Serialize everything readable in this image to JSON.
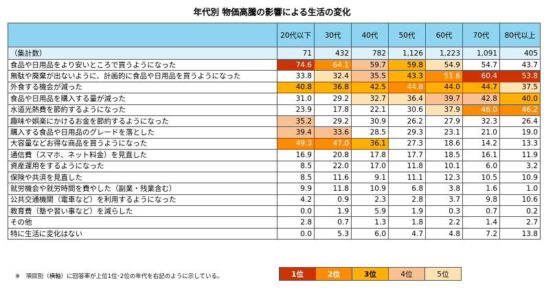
{
  "title": "年代別 物価高騰の影響による生活の変化",
  "colors": {
    "rank1": "#cc3300",
    "rank2": "#ff8c00",
    "rank3": "#ffb000",
    "rank4": "#fac090",
    "rank5": "#fde3b3",
    "header": "#8ed3ef"
  },
  "columns": [
    "20代以下",
    "30代",
    "40代",
    "50代",
    "60代",
    "70代",
    "80代以上"
  ],
  "count_row": {
    "label": "（集計数）",
    "values": [
      "71",
      "432",
      "782",
      "1,126",
      "1,223",
      "1,091",
      "405"
    ]
  },
  "rows": [
    {
      "label": "食品や日用品をより安いところで買うようになった",
      "values": [
        "74.6",
        "64.1",
        "59.7",
        "59.8",
        "54.9",
        "54.7",
        "43.7"
      ],
      "ranks": [
        1,
        2,
        4,
        3,
        5,
        0,
        0
      ]
    },
    {
      "label": "無駄や廃棄が出ないように、計画的に食品や日用品を買うようになった",
      "values": [
        "33.8",
        "32.4",
        "35.5",
        "43.3",
        "51.6",
        "60.4",
        "53.8"
      ],
      "ranks": [
        0,
        5,
        4,
        3,
        2,
        1,
        1
      ]
    },
    {
      "label": "外食する機会が減った",
      "values": [
        "40.8",
        "36.8",
        "42.5",
        "44.8",
        "44.0",
        "44.7",
        "37.5"
      ],
      "ranks": [
        3,
        3,
        3,
        2,
        3,
        3,
        5
      ]
    },
    {
      "label": "食品や日用品を購入する量が減った",
      "values": [
        "31.0",
        "29.2",
        "32.7",
        "36.4",
        "39.7",
        "42.8",
        "40.0"
      ],
      "ranks": [
        0,
        0,
        5,
        5,
        4,
        4,
        3
      ]
    },
    {
      "label": "水道光熱費を節約するようになった",
      "values": [
        "23.9",
        "17.8",
        "22.1",
        "30.6",
        "37.9",
        "46.0",
        "46.2"
      ],
      "ranks": [
        0,
        0,
        0,
        0,
        5,
        2,
        2
      ]
    },
    {
      "label": "趣味や娯楽にかけるお金を節約するようになった",
      "values": [
        "35.2",
        "29.2",
        "30.9",
        "26.2",
        "27.9",
        "32.3",
        "26.4"
      ],
      "ranks": [
        4,
        0,
        0,
        0,
        0,
        0,
        0
      ]
    },
    {
      "label": "購入する食品や日用品のグレードを落とした",
      "values": [
        "39.4",
        "33.6",
        "28.5",
        "29.3",
        "23.1",
        "21.0",
        "19.0"
      ],
      "ranks": [
        4,
        4,
        0,
        0,
        0,
        0,
        0
      ]
    },
    {
      "label": "大容量などお得な商品を買うようになった",
      "values": [
        "49.3",
        "47.0",
        "36.1",
        "27.3",
        "18.6",
        "14.2",
        "13.3"
      ],
      "ranks": [
        2,
        2,
        3,
        0,
        0,
        0,
        0
      ]
    },
    {
      "label": "通信費（スマホ、ネット料金）を見直した",
      "values": [
        "16.9",
        "20.8",
        "17.8",
        "17.7",
        "18.5",
        "16.1",
        "11.9"
      ],
      "ranks": [
        0,
        0,
        0,
        0,
        0,
        0,
        0
      ]
    },
    {
      "label": "資産運用をするようになった",
      "values": [
        "8.5",
        "22.0",
        "17.0",
        "11.8",
        "10.1",
        "6.0",
        "3.2"
      ],
      "ranks": [
        0,
        0,
        0,
        0,
        0,
        0,
        0
      ]
    },
    {
      "label": "保険や共済を見直した",
      "values": [
        "8.5",
        "11.6",
        "9.1",
        "11.1",
        "12.3",
        "10.5",
        "10.9"
      ],
      "ranks": [
        0,
        0,
        0,
        0,
        0,
        0,
        0
      ]
    },
    {
      "label": "就労機会や就労時間を費やした（副業・残業含む）",
      "values": [
        "9.9",
        "11.8",
        "10.9",
        "6.8",
        "3.8",
        "1.6",
        "1.0"
      ],
      "ranks": [
        0,
        0,
        0,
        0,
        0,
        0,
        0
      ]
    },
    {
      "label": "公共交通機関（電車など）を利用するようになった",
      "values": [
        "4.2",
        "0.9",
        "2.3",
        "2.8",
        "3.7",
        "9.8",
        "10.6"
      ],
      "ranks": [
        0,
        0,
        0,
        0,
        0,
        0,
        0
      ]
    },
    {
      "label": "教育費（塾や習い事など）を減らした",
      "values": [
        "0.0",
        "1.9",
        "5.9",
        "1.9",
        "0.3",
        "0.7",
        "0.2"
      ],
      "ranks": [
        0,
        0,
        0,
        0,
        0,
        0,
        0
      ]
    },
    {
      "label": "その他",
      "values": [
        "2.8",
        "0.7",
        "1.3",
        "1.8",
        "2.2",
        "1.4",
        "2.7"
      ],
      "ranks": [
        0,
        0,
        0,
        0,
        0,
        0,
        0
      ]
    },
    {
      "label": "特に生活に変化はない",
      "values": [
        "0.0",
        "5.3",
        "6.0",
        "4.7",
        "4.8",
        "7.2",
        "13.8"
      ],
      "ranks": [
        0,
        0,
        0,
        0,
        0,
        0,
        0
      ]
    }
  ],
  "note": "※　項目別（横軸）に回答率が上位1位･2位の年代を右記のように示している。",
  "legend": [
    "1位",
    "2位",
    "3位",
    "4位",
    "5位"
  ]
}
